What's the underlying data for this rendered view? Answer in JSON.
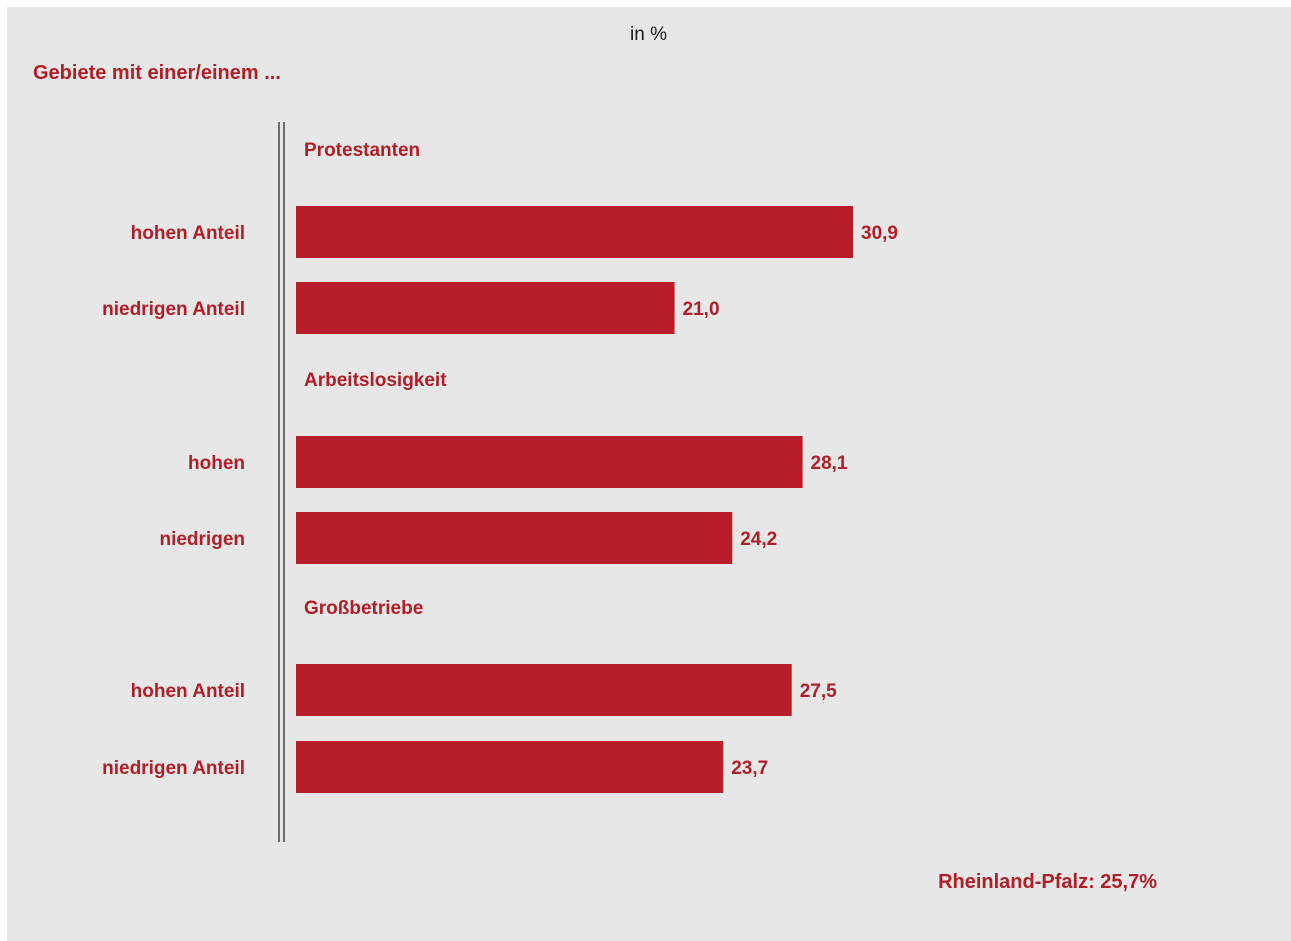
{
  "header": {
    "unit_label": "in %",
    "lead_label": "Gebiete mit einer/einem ..."
  },
  "footer": {
    "reference_label": "Rheinland-Pfalz: 25,7%"
  },
  "colors": {
    "bar": "#b81e28",
    "text_accent": "#b21e27",
    "background": "#e7e7e8",
    "axis": "#6d6d6d"
  },
  "chart_data": {
    "type": "bar",
    "orientation": "horizontal",
    "title": "",
    "xlabel": "in %",
    "ylabel": "",
    "xlim": [
      0,
      40
    ],
    "grid": false,
    "legend": "none",
    "groups": [
      {
        "name": "Protestanten",
        "categories": [
          "hohen Anteil",
          "niedrigen Anteil"
        ],
        "values": [
          30.9,
          21.0
        ],
        "value_labels": [
          "30,9",
          "21,0"
        ]
      },
      {
        "name": "Arbeitslosigkeit",
        "categories": [
          "hohen",
          "niedrigen"
        ],
        "values": [
          28.1,
          24.2
        ],
        "value_labels": [
          "28,1",
          "24,2"
        ]
      },
      {
        "name": "Großbetriebe",
        "categories": [
          "hohen Anteil",
          "niedrigen Anteil"
        ],
        "values": [
          27.5,
          23.7
        ],
        "value_labels": [
          "27,5",
          "23,7"
        ]
      }
    ],
    "reference": {
      "label": "Rheinland-Pfalz: 25,7%",
      "value": 25.7
    }
  }
}
